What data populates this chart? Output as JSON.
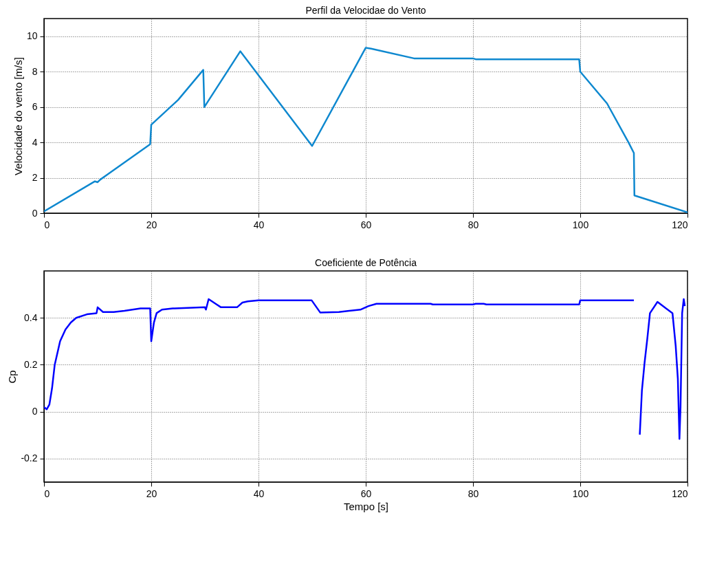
{
  "chart_data": [
    {
      "type": "line",
      "title": "Perfil da Velocidae do Vento",
      "ylabel": "Velocidade do vento [m/s]",
      "xlim": [
        0,
        120
      ],
      "xticks": [
        0,
        20,
        40,
        60,
        80,
        100,
        120
      ],
      "ylim": [
        0,
        11
      ],
      "yticks": [
        0,
        2,
        4,
        6,
        8,
        10
      ],
      "grid": true,
      "marker": "none",
      "line_style": "solid",
      "series": [
        {
          "color": "#0e88cf",
          "x": [
            0,
            9.5,
            10,
            10.5,
            19.8,
            20,
            25,
            29.7,
            29.9,
            36.6,
            50,
            60,
            61,
            69,
            80,
            80.5,
            99.8,
            100,
            105,
            109,
            110,
            110.1,
            120
          ],
          "values": [
            0.1,
            1.8,
            1.75,
            1.9,
            3.9,
            5.0,
            6.4,
            8.1,
            6.0,
            9.15,
            3.8,
            9.35,
            9.3,
            8.75,
            8.75,
            8.7,
            8.7,
            8.0,
            6.2,
            4.0,
            3.4,
            1.0,
            0.05
          ]
        }
      ]
    },
    {
      "type": "line",
      "title": "Coeficiente de Potência",
      "xlabel": "Tempo [s]",
      "ylabel": "Cp",
      "xlim": [
        0,
        120
      ],
      "xticks": [
        0,
        20,
        40,
        60,
        80,
        100,
        120
      ],
      "ylim": [
        -0.3,
        0.6
      ],
      "yticks": [
        -0.2,
        0,
        0.2,
        0.4
      ],
      "grid": true,
      "marker": "none",
      "line_style": "solid",
      "series": [
        {
          "color": "#0000ff",
          "x": [
            0,
            0.5,
            1,
            1.5,
            2,
            3,
            4,
            5,
            6,
            8,
            9.8,
            10,
            11,
            13,
            15,
            18,
            19.8,
            20,
            20.5,
            21,
            22,
            24,
            30,
            30.2,
            30.7,
            32,
            33,
            36,
            37,
            38,
            40,
            44,
            49.9,
            51.5,
            55,
            59,
            60.5,
            62,
            72.1,
            72.5,
            80,
            80.5,
            82,
            82.5,
            99.8,
            100,
            110,
            110.05,
            111,
            111.1,
            111.5,
            112,
            112.5,
            113,
            114.4,
            116,
            117.2,
            117.8,
            118.2,
            118.5,
            118.7,
            119,
            119.3,
            119.5
          ],
          "values": [
            0.02,
            0.01,
            0.03,
            0.1,
            0.2,
            0.3,
            0.35,
            0.38,
            0.4,
            0.415,
            0.42,
            0.445,
            0.425,
            0.425,
            0.43,
            0.44,
            0.44,
            0.3,
            0.38,
            0.42,
            0.435,
            0.44,
            0.445,
            0.435,
            0.48,
            0.46,
            0.445,
            0.445,
            0.465,
            0.47,
            0.475,
            0.475,
            0.475,
            0.423,
            0.425,
            0.435,
            0.45,
            0.46,
            0.46,
            0.457,
            0.457,
            0.46,
            0.46,
            0.457,
            0.457,
            0.475,
            0.475,
            null,
            null,
            -0.098,
            0.09,
            0.21,
            0.31,
            0.42,
            0.468,
            0.44,
            0.42,
            0.28,
            0.14,
            -0.116,
            0.02,
            0.42,
            0.48,
            0.45
          ]
        }
      ]
    }
  ]
}
